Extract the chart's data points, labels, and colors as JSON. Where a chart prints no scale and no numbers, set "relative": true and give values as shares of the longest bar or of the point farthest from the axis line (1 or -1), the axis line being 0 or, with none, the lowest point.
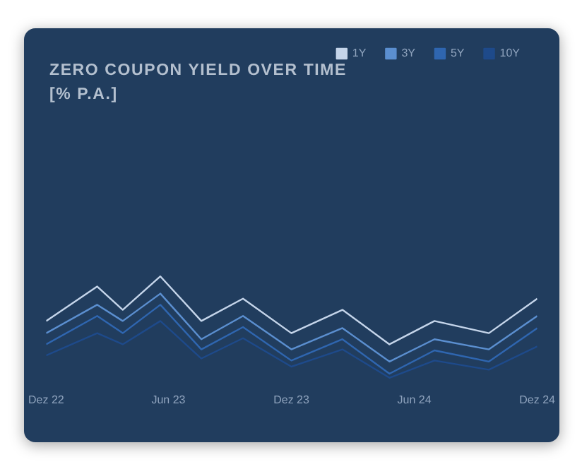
{
  "chart_data": {
    "type": "line",
    "title": "ZERO COUPON YIELD OVER TIME [% P.A.]",
    "relative": true,
    "x": [
      "2022-12-01",
      "2023-02-15",
      "2023-03-25",
      "2023-05-20",
      "2023-07-20",
      "2023-09-20",
      "2023-12-01",
      "2024-02-15",
      "2024-04-25",
      "2024-07-01",
      "2024-09-20",
      "2024-12-01"
    ],
    "xlim": [
      "2022-12-01",
      "2024-12-01"
    ],
    "xticks": [
      {
        "value": "2022-12-01",
        "label": "Dez 22"
      },
      {
        "value": "2023-06-01",
        "label": "Jun 23"
      },
      {
        "value": "2023-12-01",
        "label": "Dez 23"
      },
      {
        "value": "2024-06-01",
        "label": "Jun 24"
      },
      {
        "value": "2024-12-01",
        "label": "Dez 24"
      }
    ],
    "series": [
      {
        "name": "1Y",
        "color": "#c5d5ea",
        "values": [
          0.56,
          0.9,
          0.67,
          1,
          0.56,
          0.78,
          0.44,
          0.67,
          0.33,
          0.56,
          0.44,
          0.78
        ]
      },
      {
        "name": "3Y",
        "color": "#5b8fd0",
        "values": [
          0.44,
          0.72,
          0.56,
          0.83,
          0.38,
          0.61,
          0.28,
          0.49,
          0.16,
          0.38,
          0.28,
          0.61
        ]
      },
      {
        "name": "5Y",
        "color": "#2f66b0",
        "values": [
          0.33,
          0.61,
          0.44,
          0.72,
          0.28,
          0.5,
          0.17,
          0.38,
          0.04,
          0.27,
          0.16,
          0.49
        ]
      },
      {
        "name": "10Y",
        "color": "#1e4a8a",
        "values": [
          0.22,
          0.44,
          0.33,
          0.56,
          0.19,
          0.39,
          0.11,
          0.28,
          0,
          0.17,
          0.08,
          0.31
        ]
      }
    ],
    "grid": false,
    "legend": "top right",
    "tick_labels": "x",
    "marker": "none",
    "line_style": "solid"
  }
}
